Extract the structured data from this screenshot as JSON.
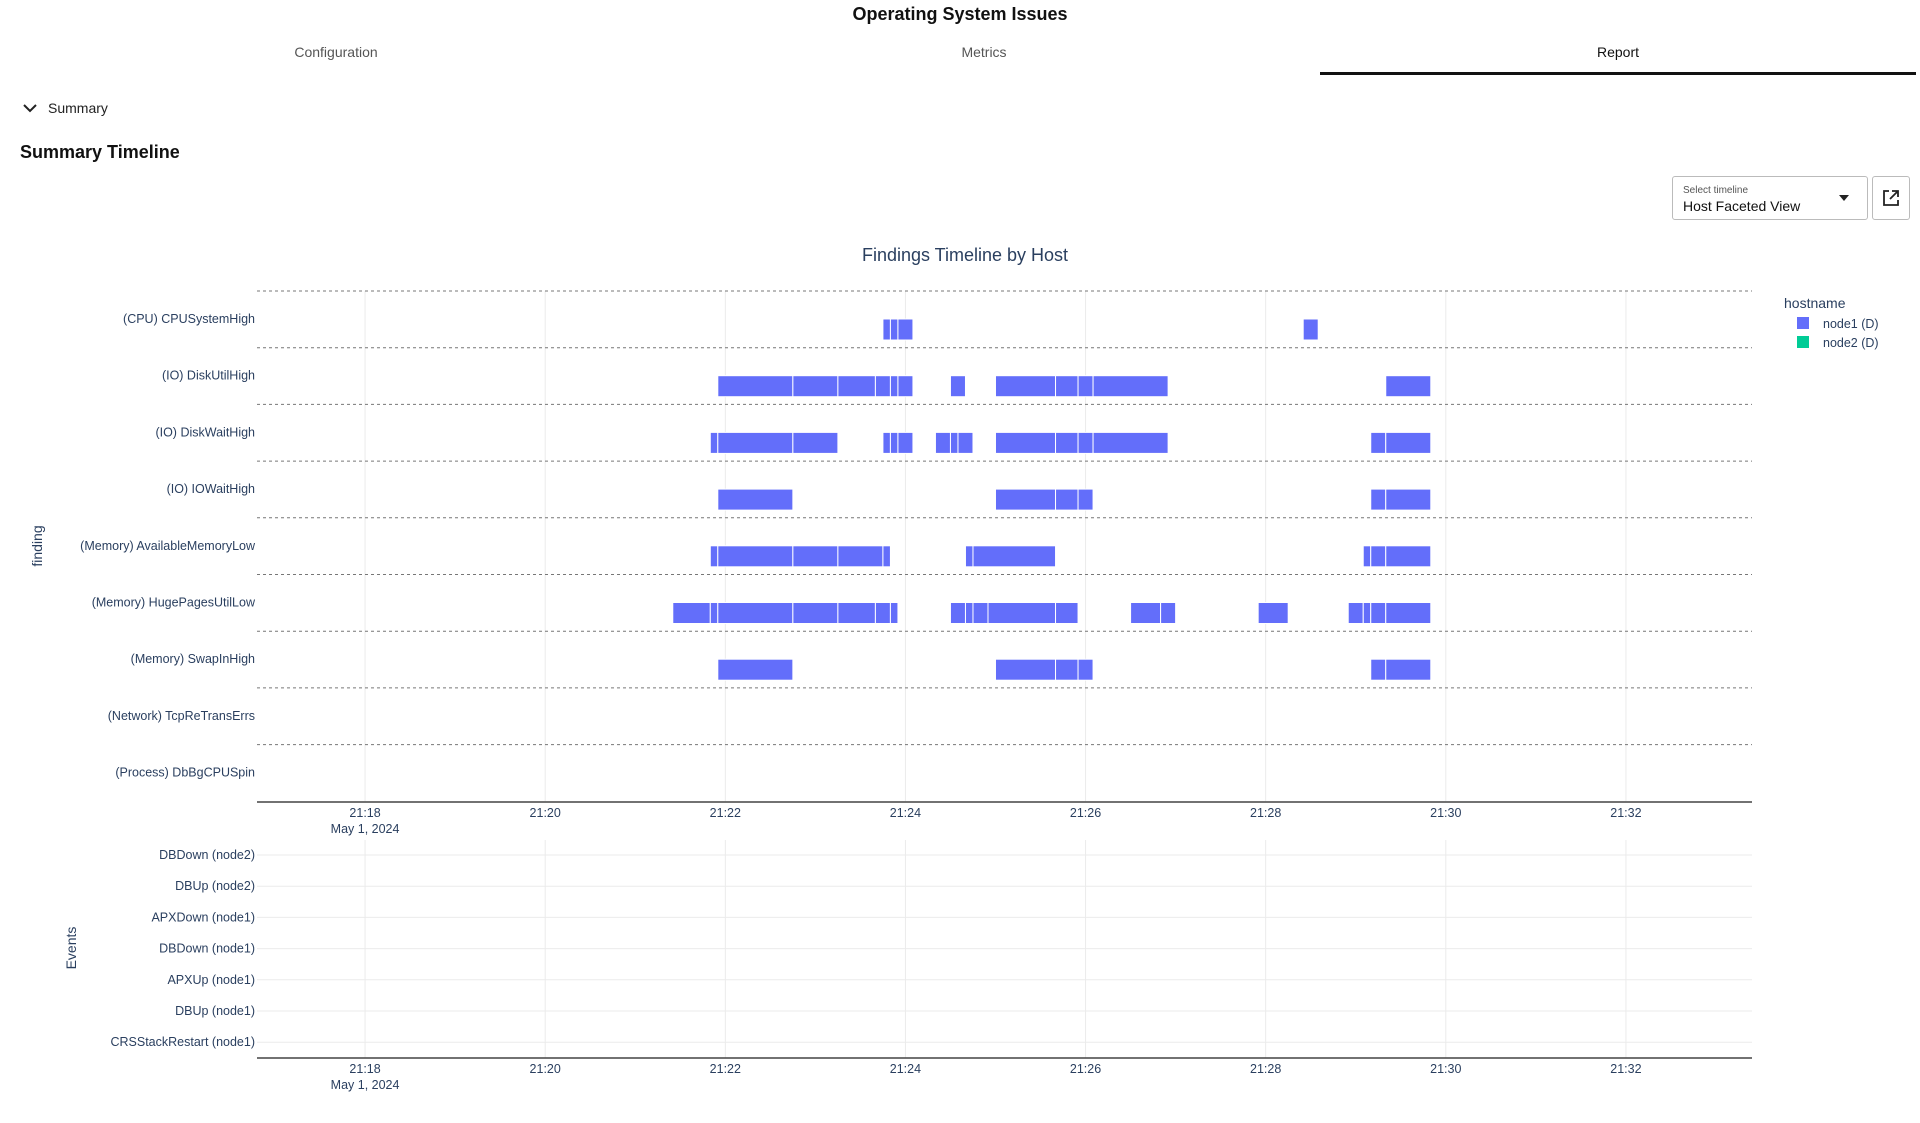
{
  "page_title": "Operating System Issues",
  "tabs": [
    {
      "label": "Configuration",
      "active": false
    },
    {
      "label": "Metrics",
      "active": false
    },
    {
      "label": "Report",
      "active": true
    }
  ],
  "summary": {
    "label": "Summary",
    "expanded": true
  },
  "section_title": "Summary Timeline",
  "timeline_select": {
    "label": "Select timeline",
    "value": "Host Faceted View"
  },
  "icons": {
    "collapse": "chevron-down-icon",
    "open": "open-in-new-icon",
    "dropdown": "caret-down-icon"
  },
  "chart_data": [
    {
      "type": "timeline",
      "title": "Findings Timeline by Host",
      "ylabel": "finding",
      "legend_title": "hostname",
      "legend_position": "top-right",
      "series": [
        {
          "name": "node1 (D)",
          "color": "#636efa"
        },
        {
          "name": "node2 (D)",
          "color": "#00cc96"
        }
      ],
      "categories": [
        "(CPU) CPUSystemHigh",
        "(IO) DiskUtilHigh",
        "(IO) DiskWaitHigh",
        "(IO) IOWaitHigh",
        "(Memory) AvailableMemoryLow",
        "(Memory) HugePagesUtilLow",
        "(Memory) SwapInHigh",
        "(Network) TcpReTransErrs",
        "(Process) DbBgCPUSpin"
      ],
      "x_ticks": [
        "21:18",
        "21:20",
        "21:22",
        "21:24",
        "21:26",
        "21:28",
        "21:30",
        "21:32"
      ],
      "x_date_label": "May 1, 2024",
      "xlim": [
        "21:16:48",
        "21:33:24"
      ],
      "bars": [
        {
          "category": "(CPU) CPUSystemHigh",
          "series": "node1 (D)",
          "segments": [
            [
              "21:23:45",
              "21:23:50"
            ],
            [
              "21:23:50",
              "21:23:55"
            ],
            [
              "21:23:55",
              "21:24:05"
            ],
            [
              "21:28:25",
              "21:28:35"
            ]
          ]
        },
        {
          "category": "(IO) DiskUtilHigh",
          "series": "node1 (D)",
          "segments": [
            [
              "21:21:55",
              "21:22:45"
            ],
            [
              "21:22:45",
              "21:23:15"
            ],
            [
              "21:23:15",
              "21:23:40"
            ],
            [
              "21:23:40",
              "21:23:50"
            ],
            [
              "21:23:50",
              "21:23:55"
            ],
            [
              "21:23:55",
              "21:24:05"
            ],
            [
              "21:24:30",
              "21:24:40"
            ],
            [
              "21:25:00",
              "21:25:40"
            ],
            [
              "21:25:40",
              "21:25:55"
            ],
            [
              "21:25:55",
              "21:26:05"
            ],
            [
              "21:26:05",
              "21:26:55"
            ],
            [
              "21:29:20",
              "21:29:50"
            ]
          ]
        },
        {
          "category": "(IO) DiskWaitHigh",
          "series": "node1 (D)",
          "segments": [
            [
              "21:21:50",
              "21:21:55"
            ],
            [
              "21:21:55",
              "21:22:45"
            ],
            [
              "21:22:45",
              "21:23:15"
            ],
            [
              "21:23:45",
              "21:23:50"
            ],
            [
              "21:23:50",
              "21:23:55"
            ],
            [
              "21:23:55",
              "21:24:05"
            ],
            [
              "21:24:20",
              "21:24:30"
            ],
            [
              "21:24:30",
              "21:24:35"
            ],
            [
              "21:24:35",
              "21:24:45"
            ],
            [
              "21:25:00",
              "21:25:40"
            ],
            [
              "21:25:40",
              "21:25:55"
            ],
            [
              "21:25:55",
              "21:26:05"
            ],
            [
              "21:26:05",
              "21:26:55"
            ],
            [
              "21:29:10",
              "21:29:20"
            ],
            [
              "21:29:20",
              "21:29:50"
            ]
          ]
        },
        {
          "category": "(IO) IOWaitHigh",
          "series": "node1 (D)",
          "segments": [
            [
              "21:21:55",
              "21:22:45"
            ],
            [
              "21:25:00",
              "21:25:40"
            ],
            [
              "21:25:40",
              "21:25:55"
            ],
            [
              "21:25:55",
              "21:26:05"
            ],
            [
              "21:29:10",
              "21:29:20"
            ],
            [
              "21:29:20",
              "21:29:50"
            ]
          ]
        },
        {
          "category": "(Memory) AvailableMemoryLow",
          "series": "node1 (D)",
          "segments": [
            [
              "21:21:50",
              "21:21:55"
            ],
            [
              "21:21:55",
              "21:22:45"
            ],
            [
              "21:22:45",
              "21:23:15"
            ],
            [
              "21:23:15",
              "21:23:45"
            ],
            [
              "21:23:45",
              "21:23:50"
            ],
            [
              "21:24:40",
              "21:24:45"
            ],
            [
              "21:24:45",
              "21:25:40"
            ],
            [
              "21:29:05",
              "21:29:10"
            ],
            [
              "21:29:10",
              "21:29:20"
            ],
            [
              "21:29:20",
              "21:29:50"
            ]
          ]
        },
        {
          "category": "(Memory) HugePagesUtilLow",
          "series": "node1 (D)",
          "segments": [
            [
              "21:21:25",
              "21:21:50"
            ],
            [
              "21:21:50",
              "21:21:55"
            ],
            [
              "21:21:55",
              "21:22:45"
            ],
            [
              "21:22:45",
              "21:23:15"
            ],
            [
              "21:23:15",
              "21:23:40"
            ],
            [
              "21:23:40",
              "21:23:50"
            ],
            [
              "21:23:50",
              "21:23:55"
            ],
            [
              "21:24:30",
              "21:24:40"
            ],
            [
              "21:24:40",
              "21:24:45"
            ],
            [
              "21:24:45",
              "21:24:55"
            ],
            [
              "21:24:55",
              "21:25:40"
            ],
            [
              "21:25:40",
              "21:25:55"
            ],
            [
              "21:26:30",
              "21:26:50"
            ],
            [
              "21:26:50",
              "21:27:00"
            ],
            [
              "21:27:55",
              "21:28:15"
            ],
            [
              "21:28:55",
              "21:29:05"
            ],
            [
              "21:29:05",
              "21:29:10"
            ],
            [
              "21:29:10",
              "21:29:20"
            ],
            [
              "21:29:20",
              "21:29:50"
            ]
          ]
        },
        {
          "category": "(Memory) SwapInHigh",
          "series": "node1 (D)",
          "segments": [
            [
              "21:21:55",
              "21:22:45"
            ],
            [
              "21:25:00",
              "21:25:40"
            ],
            [
              "21:25:40",
              "21:25:55"
            ],
            [
              "21:25:55",
              "21:26:05"
            ],
            [
              "21:29:10",
              "21:29:20"
            ],
            [
              "21:29:20",
              "21:29:50"
            ]
          ]
        }
      ],
      "grid": true
    },
    {
      "type": "timeline",
      "ylabel": "Events",
      "categories": [
        "DBDown (node2)",
        "DBUp (node2)",
        "APXDown (node1)",
        "DBDown (node1)",
        "APXUp (node1)",
        "DBUp (node1)",
        "CRSStackRestart (node1)"
      ],
      "x_ticks": [
        "21:18",
        "21:20",
        "21:22",
        "21:24",
        "21:26",
        "21:28",
        "21:30",
        "21:32"
      ],
      "x_date_label": "May 1, 2024",
      "xlim": [
        "21:16:48",
        "21:33:24"
      ],
      "bars": [],
      "grid": true
    }
  ]
}
